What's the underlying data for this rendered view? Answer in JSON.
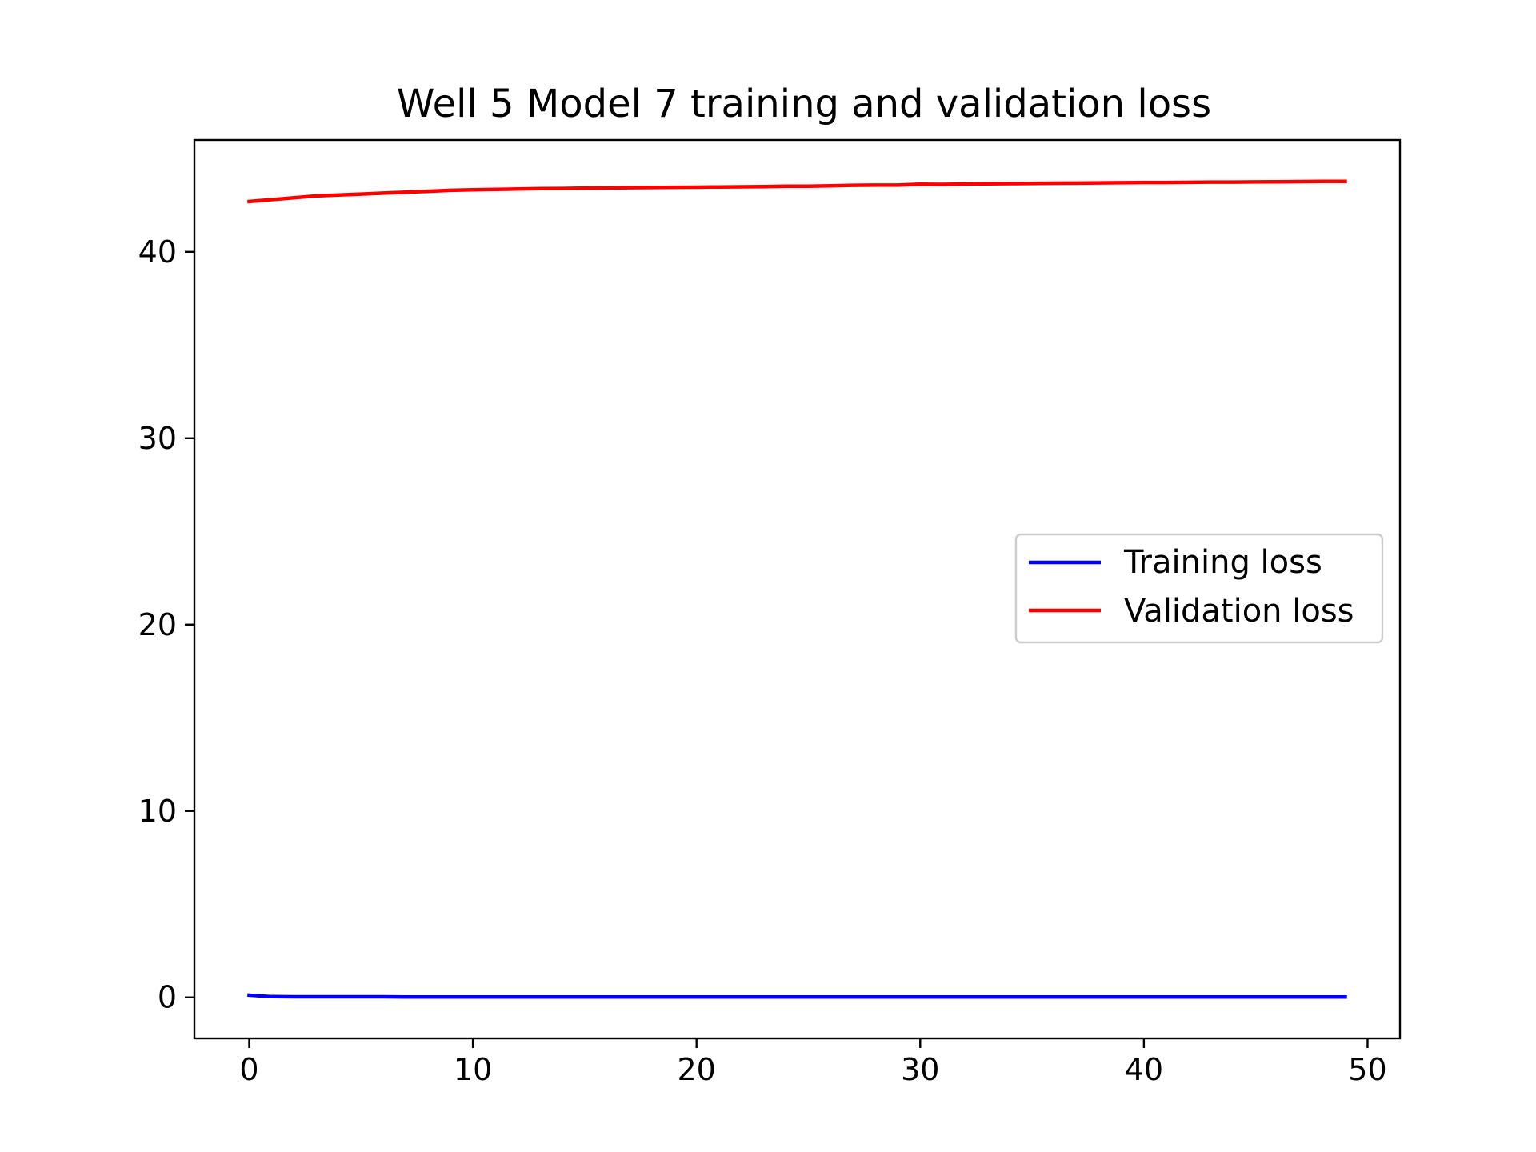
{
  "chart_data": {
    "type": "line",
    "title": "Well 5 Model 7 training and validation loss",
    "xlabel": "",
    "ylabel": "",
    "xlim": [
      -2.45,
      51.45
    ],
    "ylim": [
      -2.2,
      46.0
    ],
    "xticks": [
      0,
      10,
      20,
      30,
      40,
      50
    ],
    "yticks": [
      0,
      10,
      20,
      30,
      40
    ],
    "grid": false,
    "legend_position": "center-right",
    "x": [
      0,
      1,
      2,
      3,
      4,
      5,
      6,
      7,
      8,
      9,
      10,
      11,
      12,
      13,
      14,
      15,
      16,
      17,
      18,
      19,
      20,
      21,
      22,
      23,
      24,
      25,
      26,
      27,
      28,
      29,
      30,
      31,
      32,
      33,
      34,
      35,
      36,
      37,
      38,
      39,
      40,
      41,
      42,
      43,
      44,
      45,
      46,
      47,
      48,
      49
    ],
    "series": [
      {
        "name": "Training loss",
        "color": "#0000ff",
        "values": [
          0.12,
          0.04,
          0.03,
          0.03,
          0.03,
          0.03,
          0.03,
          0.02,
          0.02,
          0.02,
          0.02,
          0.02,
          0.02,
          0.02,
          0.02,
          0.02,
          0.02,
          0.02,
          0.02,
          0.02,
          0.02,
          0.02,
          0.02,
          0.02,
          0.02,
          0.02,
          0.02,
          0.02,
          0.02,
          0.02,
          0.02,
          0.02,
          0.02,
          0.02,
          0.02,
          0.02,
          0.02,
          0.02,
          0.02,
          0.02,
          0.02,
          0.02,
          0.02,
          0.02,
          0.02,
          0.02,
          0.02,
          0.02,
          0.02,
          0.02
        ]
      },
      {
        "name": "Validation loss",
        "color": "#ff0000",
        "values": [
          42.7,
          42.8,
          42.9,
          43.0,
          43.05,
          43.1,
          43.15,
          43.2,
          43.25,
          43.3,
          43.33,
          43.35,
          43.37,
          43.39,
          43.4,
          43.42,
          43.43,
          43.44,
          43.45,
          43.46,
          43.47,
          43.48,
          43.49,
          43.5,
          43.52,
          43.52,
          43.54,
          43.57,
          43.58,
          43.58,
          43.63,
          43.62,
          43.64,
          43.65,
          43.66,
          43.67,
          43.68,
          43.69,
          43.7,
          43.71,
          43.72,
          43.72,
          43.73,
          43.74,
          43.74,
          43.75,
          43.76,
          43.77,
          43.78,
          43.78
        ]
      }
    ]
  }
}
